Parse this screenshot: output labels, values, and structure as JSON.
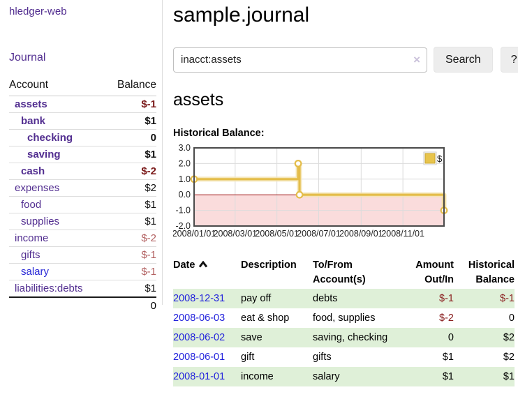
{
  "sidebar": {
    "brand": "hledger-web",
    "nav": {
      "journal": "Journal"
    },
    "accounts": {
      "col_account": "Account",
      "col_balance": "Balance",
      "rows": [
        {
          "name": "assets",
          "depth": 0,
          "balance": "$-1",
          "emph": true,
          "neg": "strong",
          "link_color": "purple"
        },
        {
          "name": "bank",
          "depth": 1,
          "balance": "$1",
          "emph": true,
          "neg": "none",
          "link_color": "purple"
        },
        {
          "name": "checking",
          "depth": 2,
          "balance": "0",
          "emph": true,
          "neg": "none",
          "link_color": "purple"
        },
        {
          "name": "saving",
          "depth": 2,
          "balance": "$1",
          "emph": true,
          "neg": "none",
          "link_color": "purple"
        },
        {
          "name": "cash",
          "depth": 1,
          "balance": "$-2",
          "emph": true,
          "neg": "strong",
          "link_color": "purple"
        },
        {
          "name": "expenses",
          "depth": 0,
          "balance": "$2",
          "emph": false,
          "neg": "none",
          "link_color": "purple"
        },
        {
          "name": "food",
          "depth": 1,
          "balance": "$1",
          "emph": false,
          "neg": "none",
          "link_color": "purple"
        },
        {
          "name": "supplies",
          "depth": 1,
          "balance": "$1",
          "emph": false,
          "neg": "none",
          "link_color": "purple"
        },
        {
          "name": "income",
          "depth": 0,
          "balance": "$-2",
          "emph": false,
          "neg": "soft",
          "link_color": "purple"
        },
        {
          "name": "gifts",
          "depth": 1,
          "balance": "$-1",
          "emph": false,
          "neg": "soft",
          "link_color": "purple"
        },
        {
          "name": "salary",
          "depth": 1,
          "balance": "$-1",
          "emph": false,
          "neg": "soft",
          "link_color": "blue"
        },
        {
          "name": "liabilities:debts",
          "depth": 0,
          "balance": "$1",
          "emph": false,
          "neg": "none",
          "link_color": "purple"
        }
      ],
      "total": "0"
    }
  },
  "main": {
    "title": "sample.journal",
    "search": {
      "value": "inacct:assets",
      "clear_icon": "×",
      "search_button": "Search",
      "help_button": "?"
    },
    "account_heading": "assets",
    "chart_title": "Historical Balance:"
  },
  "chart_data": {
    "type": "line",
    "step": true,
    "title": "Historical Balance",
    "series": [
      {
        "name": "$",
        "points": [
          [
            "2008-01-01",
            1
          ],
          [
            "2008-06-01",
            2
          ],
          [
            "2008-06-03",
            0
          ],
          [
            "2008-12-31",
            -1
          ]
        ]
      }
    ],
    "x_range": [
      "2008-01-01",
      "2008-12-31"
    ],
    "x_ticks": [
      "2008/01/01",
      "2008/03/01",
      "2008/05/01",
      "2008/07/01",
      "2008/09/01",
      "2008/11/01"
    ],
    "y_ticks": [
      3.0,
      2.0,
      1.0,
      0.0,
      -1.0,
      -2.0
    ],
    "ylim": [
      -2,
      3
    ],
    "legend": {
      "label": "$",
      "color": "#e8c44c",
      "position": "top-right"
    },
    "line_color": "#e4bd4a",
    "halo_color": "#f3e3b0",
    "negative_region_color": "#fadcdc",
    "zero_line_color": "#a01414",
    "grid_color": "#dcdcdc",
    "border_color": "#4a4a4a"
  },
  "register": {
    "headers": {
      "date": "Date",
      "description": "Description",
      "account_line1": "To/From",
      "account_line2": "Account(s)",
      "amount_line1": "Amount",
      "amount_line2": "Out/In",
      "balance_line1": "Historical",
      "balance_line2": "Balance"
    },
    "sort_icon": "chevron-up",
    "rows": [
      {
        "date": "2008-12-31",
        "description": "pay off",
        "account": "debts",
        "amount": "$-1",
        "balance": "$-1",
        "amount_neg": true,
        "balance_neg": true
      },
      {
        "date": "2008-06-03",
        "description": "eat & shop",
        "account": "food, supplies",
        "amount": "$-2",
        "balance": "0",
        "amount_neg": true,
        "balance_neg": false
      },
      {
        "date": "2008-06-02",
        "description": "save",
        "account": "saving, checking",
        "amount": "0",
        "balance": "$2",
        "amount_neg": false,
        "balance_neg": false
      },
      {
        "date": "2008-06-01",
        "description": "gift",
        "account": "gifts",
        "amount": "$1",
        "balance": "$2",
        "amount_neg": false,
        "balance_neg": false
      },
      {
        "date": "2008-01-01",
        "description": "income",
        "account": "salary",
        "amount": "$1",
        "balance": "$1",
        "amount_neg": false,
        "balance_neg": false
      }
    ]
  }
}
